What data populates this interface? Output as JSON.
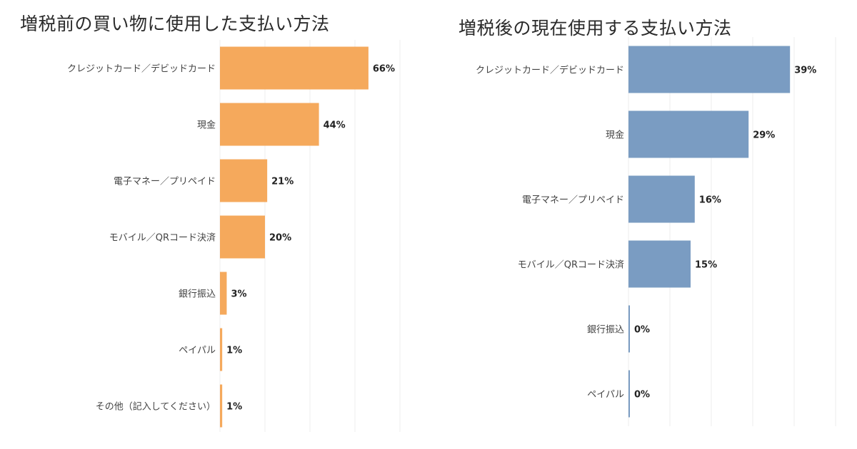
{
  "chart_data": [
    {
      "type": "bar",
      "orientation": "horizontal",
      "title": "増税前の買い物に使用した支払い方法",
      "categories": [
        "クレジットカード／デビッドカード",
        "現金",
        "電子マネー／プリペイド",
        "モバイル／QRコード決済",
        "銀行振込",
        "ペイパル",
        "その他（記入してください）"
      ],
      "values": [
        66,
        44,
        21,
        20,
        3,
        1,
        1
      ],
      "value_labels": [
        "66%",
        "44%",
        "21%",
        "20%",
        "3%",
        "1%",
        "1%"
      ],
      "unit": "%",
      "xlim": [
        0,
        80
      ],
      "grid": true,
      "color": "#F5A95C"
    },
    {
      "type": "bar",
      "orientation": "horizontal",
      "title": "増税後の現在使用する支払い方法",
      "categories": [
        "クレジットカード／デビッドカード",
        "現金",
        "電子マネー／プリペイド",
        "モバイル／QRコード決済",
        "銀行振込",
        "ペイパル"
      ],
      "values": [
        39,
        29,
        16,
        15,
        0,
        0
      ],
      "value_labels": [
        "39%",
        "29%",
        "16%",
        "15%",
        "0%",
        "0%"
      ],
      "unit": "%",
      "xlim": [
        0,
        50
      ],
      "grid": true,
      "color": "#7A9CC2"
    }
  ]
}
